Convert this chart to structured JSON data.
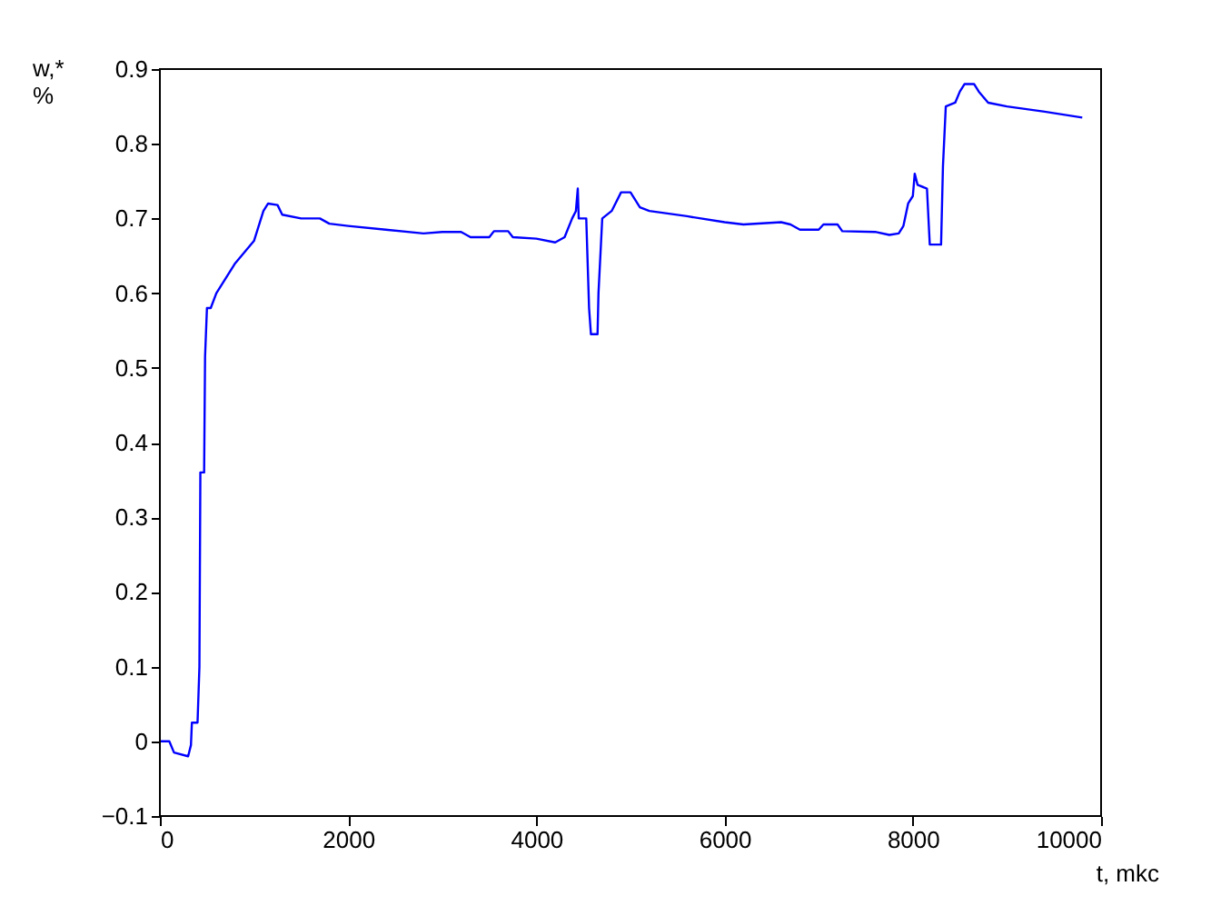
{
  "chart_data": {
    "type": "line",
    "xlabel": "t, mkc",
    "ylabel": "w,*\n%",
    "xlim": [
      0,
      10000
    ],
    "xticks": [
      0,
      2000,
      4000,
      6000,
      8000,
      10000
    ],
    "ylim": [
      -0.1,
      0.9
    ],
    "yticks": [
      -0.1,
      0,
      0.1,
      0.2,
      0.3,
      0.4,
      0.5,
      0.6,
      0.7,
      0.8,
      0.9
    ],
    "grid": false,
    "marker": "none",
    "line_style": "solid",
    "series": [
      {
        "color": "#0000ff",
        "x": [
          0,
          100,
          150,
          300,
          330,
          340,
          400,
          420,
          430,
          470,
          480,
          500,
          540,
          600,
          800,
          1000,
          1100,
          1150,
          1250,
          1300,
          1500,
          1700,
          1800,
          2000,
          2400,
          2800,
          3000,
          3200,
          3300,
          3500,
          3550,
          3700,
          3750,
          4000,
          4200,
          4300,
          4380,
          4420,
          4440,
          4450,
          4530,
          4560,
          4580,
          4650,
          4660,
          4700,
          4800,
          4900,
          5000,
          5100,
          5200,
          5600,
          6000,
          6200,
          6600,
          6700,
          6800,
          7000,
          7050,
          7200,
          7250,
          7600,
          7750,
          7850,
          7900,
          7950,
          8000,
          8020,
          8050,
          8150,
          8180,
          8300,
          8320,
          8350,
          8450,
          8500,
          8550,
          8650,
          8700,
          8800,
          9000,
          9400,
          9800
        ],
        "values": [
          0,
          0,
          -0.015,
          -0.02,
          -0.005,
          0.025,
          0.025,
          0.1,
          0.36,
          0.36,
          0.515,
          0.58,
          0.58,
          0.6,
          0.64,
          0.67,
          0.71,
          0.72,
          0.718,
          0.705,
          0.7,
          0.7,
          0.693,
          0.69,
          0.685,
          0.68,
          0.682,
          0.682,
          0.675,
          0.675,
          0.683,
          0.683,
          0.675,
          0.673,
          0.668,
          0.675,
          0.7,
          0.71,
          0.74,
          0.7,
          0.7,
          0.58,
          0.545,
          0.545,
          0.6,
          0.7,
          0.71,
          0.735,
          0.735,
          0.715,
          0.71,
          0.703,
          0.695,
          0.692,
          0.695,
          0.692,
          0.685,
          0.685,
          0.692,
          0.692,
          0.683,
          0.682,
          0.678,
          0.68,
          0.69,
          0.72,
          0.73,
          0.76,
          0.745,
          0.74,
          0.665,
          0.665,
          0.77,
          0.85,
          0.855,
          0.87,
          0.88,
          0.88,
          0.87,
          0.855,
          0.85,
          0.843,
          0.835
        ]
      }
    ]
  }
}
